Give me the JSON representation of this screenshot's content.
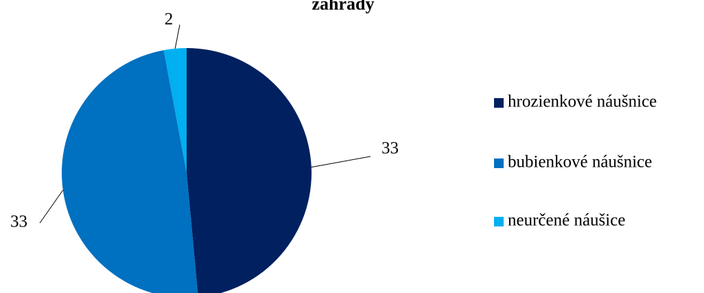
{
  "chart_data": {
    "type": "pie",
    "title": "záhrady",
    "categories": [
      "hrozienkové náušnice",
      "bubienkové náušnice",
      "neurčené náušice"
    ],
    "values": [
      33,
      33,
      2
    ],
    "colors": [
      "#002060",
      "#0070c0",
      "#00b0f0"
    ],
    "legend": "right"
  }
}
